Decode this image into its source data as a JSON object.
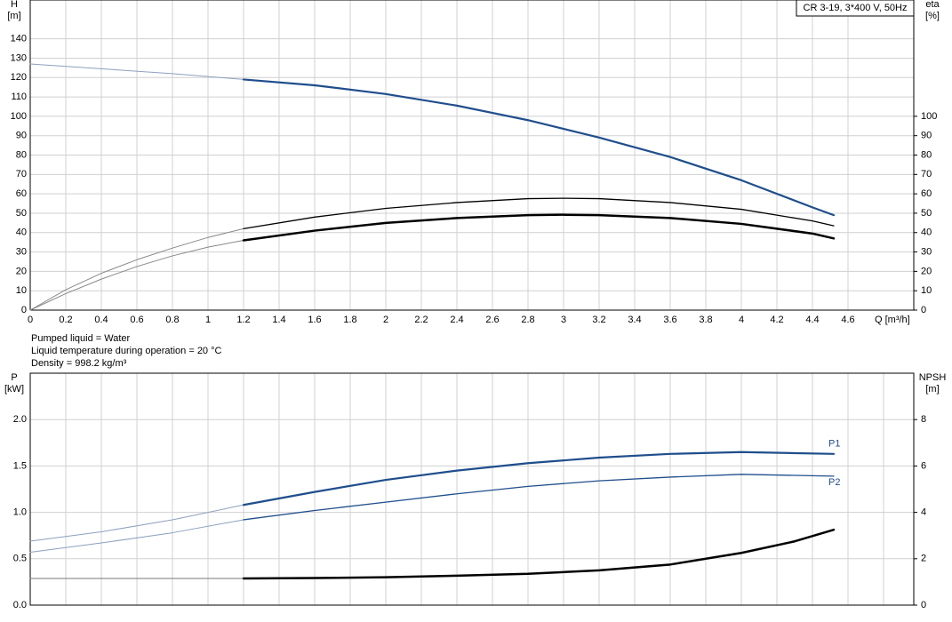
{
  "chart_data": [
    {
      "type": "line",
      "title": "CR 3-19, 3*400 V, 50Hz",
      "ylabel": "H",
      "yunit": "[m]",
      "y2label": "eta",
      "y2unit": "[%]",
      "xlabel": "Q [m³/h]",
      "xlim": [
        0,
        4.97
      ],
      "xticks": [
        0,
        0.2,
        0.4,
        0.6,
        0.8,
        1.0,
        1.2,
        1.4,
        1.6,
        1.8,
        2.0,
        2.2,
        2.4,
        2.6,
        2.8,
        3.0,
        3.2,
        3.4,
        3.6,
        3.8,
        4.0,
        4.2,
        4.4,
        4.6
      ],
      "ylim": [
        0,
        160
      ],
      "yticks": [
        0,
        10,
        20,
        30,
        40,
        50,
        60,
        70,
        80,
        90,
        100,
        110,
        120,
        130,
        140
      ],
      "y2lim": [
        0,
        160
      ],
      "y2ticks": [
        0,
        10,
        20,
        30,
        40,
        50,
        60,
        70,
        80,
        90,
        100
      ],
      "grid": true,
      "series": [
        {
          "color": "#8da0bd",
          "width": 1,
          "x": [
            0,
            0.4,
            0.8,
            1.2
          ],
          "values": [
            127,
            124.5,
            122,
            119
          ]
        },
        {
          "color": "#1f4e8c",
          "width": 2.2,
          "x": [
            1.2,
            1.6,
            2.0,
            2.4,
            2.8,
            3.2,
            3.6,
            4.0,
            4.4,
            4.52
          ],
          "values": [
            119,
            116,
            111.5,
            105.5,
            98,
            89,
            79,
            67,
            53,
            49
          ]
        },
        {
          "axis": "y2",
          "color": "#888888",
          "width": 1,
          "x": [
            0,
            0.2,
            0.4,
            0.6,
            0.8,
            1.0,
            1.2
          ],
          "values": [
            0,
            10.5,
            19,
            26,
            32,
            37.5,
            42
          ]
        },
        {
          "axis": "y2",
          "color": "#000000",
          "width": 1.3,
          "x": [
            1.2,
            1.6,
            2.0,
            2.4,
            2.8,
            3.0,
            3.2,
            3.6,
            4.0,
            4.4,
            4.52
          ],
          "values": [
            42,
            48,
            52.5,
            55.5,
            57.5,
            57.7,
            57.5,
            55.5,
            52,
            46,
            43.5
          ]
        },
        {
          "axis": "y2",
          "color": "#888888",
          "width": 1,
          "x": [
            0,
            0.2,
            0.4,
            0.6,
            0.8,
            1.0,
            1.2
          ],
          "values": [
            0,
            8.5,
            16,
            22.5,
            28,
            32.5,
            36
          ]
        },
        {
          "axis": "y2",
          "color": "#000000",
          "width": 2.5,
          "x": [
            1.2,
            1.6,
            2.0,
            2.4,
            2.8,
            3.0,
            3.2,
            3.6,
            4.0,
            4.4,
            4.52
          ],
          "values": [
            36,
            41,
            45,
            47.5,
            49,
            49.2,
            49,
            47.5,
            44.5,
            39.5,
            37
          ]
        }
      ]
    },
    {
      "type": "line",
      "ylabel": "P",
      "yunit": "[kW]",
      "y2label": "NPSH",
      "y2unit": "[m]",
      "xlim": [
        0,
        4.97
      ],
      "xgrid": [
        0,
        0.2,
        0.4,
        0.6,
        0.8,
        1.0,
        1.2,
        1.4,
        1.6,
        1.8,
        2.0,
        2.2,
        2.4,
        2.6,
        2.8,
        3.0,
        3.2,
        3.4,
        3.6,
        3.8,
        4.0,
        4.2,
        4.4,
        4.6,
        4.8
      ],
      "ylim": [
        0,
        2.5
      ],
      "yticks": [
        {
          "value": 0,
          "label": "0.0"
        },
        0.5,
        {
          "value": 1,
          "label": "1.0"
        },
        1.5,
        {
          "value": 2,
          "label": "2.0"
        }
      ],
      "y2lim": [
        0,
        10
      ],
      "y2ticks": [
        0,
        2,
        4,
        6,
        8
      ],
      "grid": true,
      "series": [
        {
          "color": "#8da0bd",
          "width": 1,
          "x": [
            0,
            0.4,
            0.8,
            1.2
          ],
          "values": [
            0.69,
            0.79,
            0.92,
            1.08
          ]
        },
        {
          "name": "P1",
          "color": "#1f4e8c",
          "width": 2.2,
          "x": [
            1.2,
            1.6,
            2.0,
            2.4,
            2.8,
            3.2,
            3.6,
            4.0,
            4.52
          ],
          "values": [
            1.08,
            1.22,
            1.35,
            1.45,
            1.53,
            1.59,
            1.63,
            1.65,
            1.63
          ]
        },
        {
          "color": "#8da0bd",
          "width": 1,
          "x": [
            0,
            0.4,
            0.8,
            1.2
          ],
          "values": [
            0.57,
            0.67,
            0.78,
            0.92
          ]
        },
        {
          "name": "P2",
          "color": "#1f4e8c",
          "width": 1.3,
          "x": [
            1.2,
            1.6,
            2.0,
            2.4,
            2.8,
            3.2,
            3.6,
            4.0,
            4.52
          ],
          "values": [
            0.92,
            1.02,
            1.11,
            1.2,
            1.28,
            1.34,
            1.38,
            1.41,
            1.39
          ]
        },
        {
          "axis": "y2",
          "color": "#777777",
          "width": 1,
          "x": [
            0,
            1.2
          ],
          "values": [
            1.15,
            1.15
          ]
        },
        {
          "axis": "y2",
          "color": "#000000",
          "width": 2.5,
          "x": [
            1.2,
            1.6,
            2.0,
            2.4,
            2.8,
            3.2,
            3.6,
            4.0,
            4.3,
            4.52
          ],
          "values": [
            1.15,
            1.17,
            1.2,
            1.27,
            1.35,
            1.5,
            1.75,
            2.25,
            2.75,
            3.25
          ]
        }
      ]
    }
  ],
  "notes": [
    "Pumped liquid = Water",
    "Liquid temperature during operation = 20 °C",
    "Density = 998.2 kg/m³"
  ]
}
